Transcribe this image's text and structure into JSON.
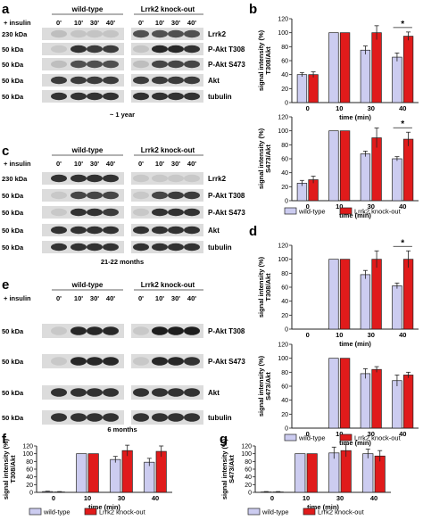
{
  "panel_letters": [
    "a",
    "b",
    "c",
    "d",
    "e",
    "f",
    "g"
  ],
  "blot_common": {
    "insulin_label": "+ insulin",
    "wt_label": "wild-type",
    "ko_label": "Lrrk2 knock-out",
    "lanes": [
      "0'",
      "10'",
      "30'",
      "40'",
      "0'",
      "10'",
      "30'",
      "40'"
    ]
  },
  "blots": [
    {
      "caption": "~ 1 year",
      "rows": [
        {
          "kda": "230 kDa",
          "label": "Lrrk2"
        },
        {
          "kda": "50 kDa",
          "label": "P-Akt T308"
        },
        {
          "kda": "50 kDa",
          "label": "P-Akt S473"
        },
        {
          "kda": "50 kDa",
          "label": "Akt"
        },
        {
          "kda": "50 kDa",
          "label": "tubulin"
        }
      ]
    },
    {
      "caption": "21-22 months",
      "rows": [
        {
          "kda": "230 kDa",
          "label": "Lrrk2"
        },
        {
          "kda": "50 kDa",
          "label": "P-Akt T308"
        },
        {
          "kda": "50 kDa",
          "label": "P-Akt S473"
        },
        {
          "kda": "50 kDa",
          "label": "Akt"
        },
        {
          "kda": "50 kDa",
          "label": "tubulin"
        }
      ]
    },
    {
      "caption": "6 months",
      "rows": [
        {
          "kda": "50 kDa",
          "label": "P-Akt T308"
        },
        {
          "kda": "50 kDa",
          "label": "P-Akt S473"
        },
        {
          "kda": "50 kDa",
          "label": "Akt"
        },
        {
          "kda": "50 kDa",
          "label": "tubulin"
        }
      ]
    }
  ],
  "colors": {
    "wild_type": "#ccccf0",
    "knock_out": "#e01b1b"
  },
  "legend": {
    "wt": "wild-type",
    "ko": "Lrrk2 knock-out"
  },
  "chart_data": [
    {
      "type": "bar",
      "panel": "b-top",
      "categories": [
        "0",
        "10",
        "30",
        "40"
      ],
      "ylabel": "signal intensity (%) T308/Akt",
      "xlabel": "time (min)",
      "ylim": [
        0,
        120
      ],
      "yticks": [
        "0",
        "20",
        "40",
        "60",
        "80",
        "100",
        "120"
      ],
      "series": [
        {
          "name": "wild-type",
          "values": [
            40,
            100,
            75,
            65
          ],
          "err": [
            3,
            0,
            6,
            6
          ]
        },
        {
          "name": "Lrrk2 knock-out",
          "values": [
            40,
            100,
            100,
            95
          ],
          "err": [
            4,
            0,
            10,
            6
          ]
        }
      ],
      "star": "*"
    },
    {
      "type": "bar",
      "panel": "b-bottom",
      "categories": [
        "0",
        "10",
        "30",
        "40"
      ],
      "ylabel": "signal intensity (%) S473/Akt",
      "xlabel": "time (min)",
      "ylim": [
        0,
        120
      ],
      "yticks": [
        "0",
        "20",
        "40",
        "60",
        "80",
        "100",
        "120"
      ],
      "series": [
        {
          "name": "wild-type",
          "values": [
            25,
            100,
            67,
            60
          ],
          "err": [
            4,
            0,
            4,
            3
          ]
        },
        {
          "name": "Lrrk2 knock-out",
          "values": [
            30,
            100,
            90,
            88
          ],
          "err": [
            5,
            0,
            14,
            10
          ]
        }
      ],
      "star": "*"
    },
    {
      "type": "bar",
      "panel": "d-top",
      "categories": [
        "0",
        "10",
        "30",
        "40"
      ],
      "ylabel": "signal intensity (%) T308/Akt",
      "xlabel": "time (min)",
      "ylim": [
        0,
        120
      ],
      "yticks": [
        "0",
        "20",
        "40",
        "60",
        "80",
        "100",
        "120"
      ],
      "series": [
        {
          "name": "wild-type",
          "values": [
            0,
            100,
            78,
            62
          ],
          "err": [
            0,
            0,
            6,
            4
          ]
        },
        {
          "name": "Lrrk2 knock-out",
          "values": [
            0,
            100,
            100,
            100
          ],
          "err": [
            0,
            0,
            12,
            12
          ]
        }
      ],
      "star": "*"
    },
    {
      "type": "bar",
      "panel": "d-bottom",
      "categories": [
        "0",
        "10",
        "30",
        "40"
      ],
      "ylabel": "signal intensity (%) S473/Akt",
      "xlabel": "time (min)",
      "ylim": [
        0,
        120
      ],
      "yticks": [
        "0",
        "20",
        "40",
        "60",
        "80",
        "100",
        "120"
      ],
      "series": [
        {
          "name": "wild-type",
          "values": [
            0,
            100,
            78,
            68
          ],
          "err": [
            0,
            0,
            7,
            8
          ]
        },
        {
          "name": "Lrrk2 knock-out",
          "values": [
            0,
            100,
            84,
            76
          ],
          "err": [
            0,
            0,
            4,
            4
          ]
        }
      ]
    },
    {
      "type": "bar",
      "panel": "f",
      "categories": [
        "0",
        "10",
        "30",
        "40"
      ],
      "ylabel": "signal intensity (%) T308/Akt",
      "xlabel": "time (min)",
      "ylim": [
        0,
        120
      ],
      "yticks": [
        "0",
        "20",
        "40",
        "60",
        "80",
        "100",
        "120"
      ],
      "series": [
        {
          "name": "wild-type",
          "values": [
            2,
            100,
            85,
            78
          ],
          "err": [
            1,
            0,
            8,
            10
          ]
        },
        {
          "name": "Lrrk2 knock-out",
          "values": [
            1,
            100,
            108,
            106
          ],
          "err": [
            1,
            0,
            14,
            14
          ]
        }
      ]
    },
    {
      "type": "bar",
      "panel": "g",
      "categories": [
        "0",
        "10",
        "30",
        "40"
      ],
      "ylabel": "signal intensity (%) S473/Akt",
      "xlabel": "time (min)",
      "ylim": [
        0,
        120
      ],
      "yticks": [
        "0",
        "20",
        "40",
        "60",
        "80",
        "100",
        "120"
      ],
      "series": [
        {
          "name": "wild-type",
          "values": [
            1,
            100,
            102,
            100
          ],
          "err": [
            1,
            0,
            15,
            12
          ]
        },
        {
          "name": "Lrrk2 knock-out",
          "values": [
            1,
            100,
            108,
            94
          ],
          "err": [
            1,
            0,
            16,
            14
          ]
        }
      ]
    }
  ]
}
